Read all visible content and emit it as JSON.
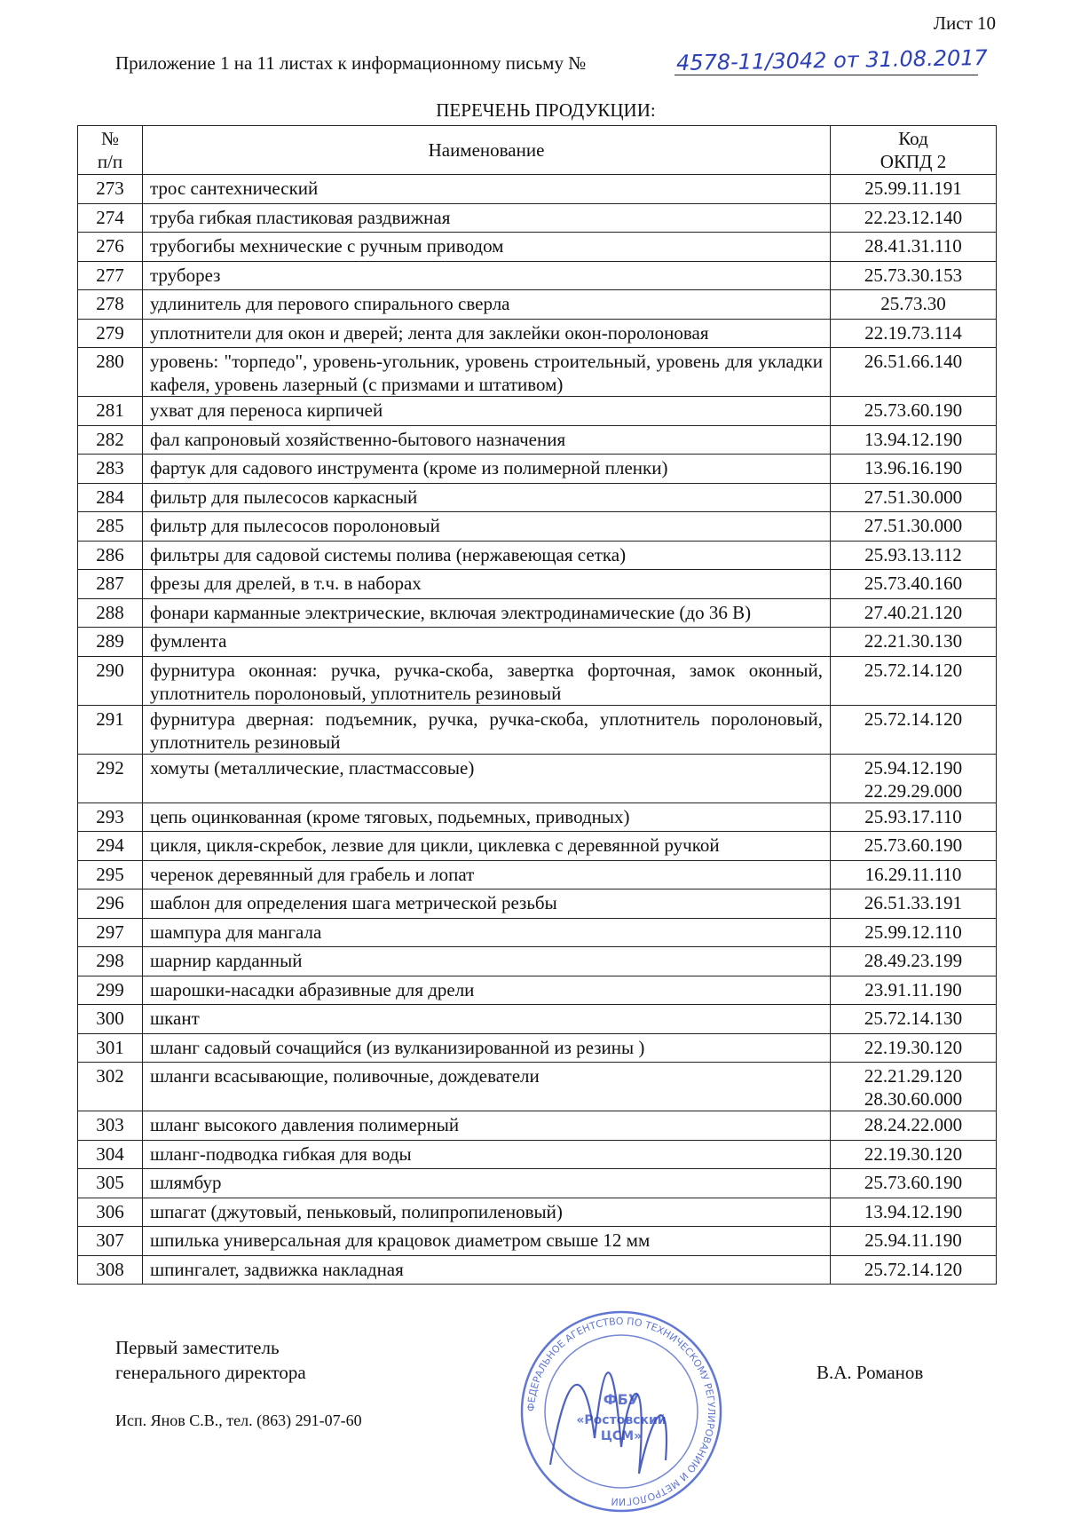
{
  "header": {
    "sheet": "Лист 10",
    "appendix": "Приложение 1 на 11 листах к информационному письму №",
    "handwritten_number": "4578-11/3042 от 31.08.2017"
  },
  "title": "ПЕРЕЧЕНЬ ПРОДУКЦИИ:",
  "table": {
    "columns": [
      "№ п/п",
      "Наименование",
      "Код ОКПД 2"
    ],
    "col_no_line1": "№",
    "col_no_line2": "п/п",
    "col_code_line1": "Код",
    "col_code_line2": "ОКПД 2",
    "rows": [
      {
        "no": "273",
        "name": "трос сантехнический",
        "code": "25.99.11.191"
      },
      {
        "no": "274",
        "name": "труба гибкая пластиковая раздвижная",
        "code": "22.23.12.140"
      },
      {
        "no": "276",
        "name": "трубогибы мехнические с ручным приводом",
        "code": "28.41.31.110"
      },
      {
        "no": "277",
        "name": "труборез",
        "code": "25.73.30.153"
      },
      {
        "no": "278",
        "name": "удлинитель для перового спирального сверла",
        "code": "25.73.30"
      },
      {
        "no": "279",
        "name": "уплотнители для окон и дверей; лента для заклейки окон-поролоновая",
        "code": "22.19.73.114"
      },
      {
        "no": "280",
        "name": "уровень: \"торпедо\", уровень-угольник, уровень строительный, уровень для укладки кафеля, уровень лазерный (с призмами и штативом)",
        "code": "26.51.66.140"
      },
      {
        "no": "281",
        "name": "ухват для переноса кирпичей",
        "code": "25.73.60.190"
      },
      {
        "no": "282",
        "name": "фал капроновый хозяйственно-бытового назначения",
        "code": "13.94.12.190"
      },
      {
        "no": "283",
        "name": "фартук для садового инструмента (кроме из полимерной пленки)",
        "code": "13.96.16.190"
      },
      {
        "no": "284",
        "name": "фильтр для пылесосов каркасный",
        "code": "27.51.30.000"
      },
      {
        "no": "285",
        "name": "фильтр для пылесосов поролоновый",
        "code": "27.51.30.000"
      },
      {
        "no": "286",
        "name": "фильтры для садовой системы полива (нержавеющая сетка)",
        "code": "25.93.13.112"
      },
      {
        "no": "287",
        "name": "фрезы для дрелей, в т.ч. в наборах",
        "code": "25.73.40.160"
      },
      {
        "no": "288",
        "name": "фонари карманные электрические, включая электродинамические (до 36 В)",
        "code": "27.40.21.120"
      },
      {
        "no": "289",
        "name": "фумлента",
        "code": "22.21.30.130"
      },
      {
        "no": "290",
        "name": "фурнитура оконная: ручка, ручка-скоба, завертка форточная, замок оконный, уплотнитель поролоновый, уплотнитель резиновый",
        "code": "25.72.14.120"
      },
      {
        "no": "291",
        "name": "фурнитура дверная: подъемник, ручка, ручка-скоба, уплотнитель поролоновый, уплотнитель резиновый",
        "code": "25.72.14.120"
      },
      {
        "no": "292",
        "name": "хомуты (металлические, пластмассовые)",
        "code": "25.94.12.190\n22.29.29.000"
      },
      {
        "no": "293",
        "name": "цепь оцинкованная (кроме тяговых, подьемных, приводных)",
        "code": "25.93.17.110"
      },
      {
        "no": "294",
        "name": "цикля, цикля-скребок, лезвие для цикли, циклевка с деревянной ручкой",
        "code": "25.73.60.190"
      },
      {
        "no": "295",
        "name": "черенок деревянный для грабель и лопат",
        "code": "16.29.11.110"
      },
      {
        "no": "296",
        "name": "шаблон для определения шага метрической резьбы",
        "code": "26.51.33.191"
      },
      {
        "no": "297",
        "name": "шампура для мангала",
        "code": "25.99.12.110"
      },
      {
        "no": "298",
        "name": "шарнир карданный",
        "code": "28.49.23.199"
      },
      {
        "no": "299",
        "name": "шарошки-насадки абразивные для дрели",
        "code": "23.91.11.190"
      },
      {
        "no": "300",
        "name": "шкант",
        "code": "25.72.14.130"
      },
      {
        "no": "301",
        "name": "шланг садовый сочащийся (из вулканизированной из резины )",
        "code": "22.19.30.120"
      },
      {
        "no": "302",
        "name": "шланги всасывающие, поливочные, дождеватели",
        "code": "22.21.29.120\n28.30.60.000"
      },
      {
        "no": "303",
        "name": "шланг высокого давления полимерный",
        "code": "28.24.22.000"
      },
      {
        "no": "304",
        "name": "шланг-подводка гибкая для воды",
        "code": "22.19.30.120"
      },
      {
        "no": "305",
        "name": "шлямбур",
        "code": "25.73.60.190"
      },
      {
        "no": "306",
        "name": "шпагат (джутовый, пеньковый, полипропиленовый)",
        "code": "13.94.12.190"
      },
      {
        "no": "307",
        "name": "шпилька универсальная для крацовок диаметром свыше 12 мм",
        "code": "25.94.11.190"
      },
      {
        "no": "308",
        "name": "шпингалет, задвижка накладная",
        "code": "25.72.14.120"
      }
    ]
  },
  "footer": {
    "position_line1": "Первый заместитель",
    "position_line2": "генерального директора",
    "signer": "В.А. Романов",
    "executor": "Исп. Янов С.В., тел. (863) 291-07-60"
  },
  "stamp": {
    "text": "Федеральное агентство по техническому регулированию и метрологии ФБУ «Ростовский ЦСМ»",
    "center": "ФБУ «Ростовский ЦСМ»",
    "color": "#3a55c8"
  },
  "colors": {
    "ink": "#111111",
    "handwriting": "#2b3fb8"
  }
}
